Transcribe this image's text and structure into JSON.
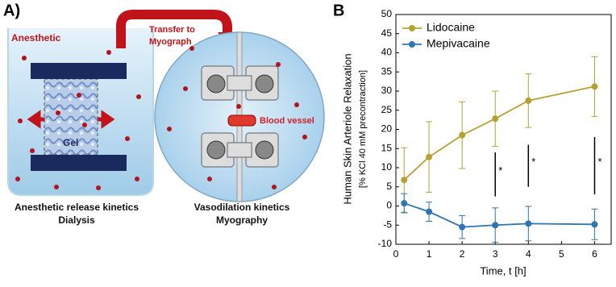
{
  "diagram": {
    "panel_label": "A)",
    "anesthetic": "Anesthetic",
    "gel": "Gel",
    "transfer": [
      "Transfer to",
      "Myograph"
    ],
    "blood_vessel": "Blood vessel",
    "left_caption": [
      "Anesthetic release kinetics",
      "Dialysis"
    ],
    "right_caption": [
      "Vasodilation kinetics",
      "Myography"
    ]
  },
  "chart_data": {
    "type": "line",
    "panel_label": "B",
    "xlabel": "Time, t [h]",
    "ylabel": [
      "Human Skin Arteriole Relaxation",
      "[% KCl 40 mM precontraction]"
    ],
    "x": [
      0.25,
      1,
      2,
      3,
      4,
      6
    ],
    "series": [
      {
        "name": "Lidocaine",
        "color": "#b5a233",
        "values": [
          6.8,
          12.8,
          18.5,
          22.8,
          27.5,
          31.2
        ],
        "errors": [
          8.4,
          9.2,
          8.7,
          7.2,
          7,
          7.8
        ]
      },
      {
        "name": "Mepivacaine",
        "color": "#2e75b6",
        "values": [
          0.7,
          -1.5,
          -5.5,
          -5,
          -4.6,
          -4.8
        ],
        "errors": [
          2.5,
          2.5,
          3,
          4.5,
          4.5,
          4
        ]
      }
    ],
    "annotations": [
      {
        "text": "*",
        "x": 3,
        "y": [
          2.5,
          14
        ]
      },
      {
        "text": "*",
        "x": 4,
        "y": [
          5,
          16
        ]
      },
      {
        "text": "*",
        "x": 6,
        "y": [
          3,
          18
        ]
      }
    ],
    "xlim": [
      0,
      6.5
    ],
    "xticks": [
      0,
      1,
      2,
      3,
      4,
      5,
      6
    ],
    "ylim": [
      -10,
      50
    ],
    "yticks": [
      -10,
      -5,
      0,
      5,
      10,
      15,
      20,
      25,
      30,
      35,
      40,
      45,
      50
    ],
    "legend": "upper left"
  }
}
